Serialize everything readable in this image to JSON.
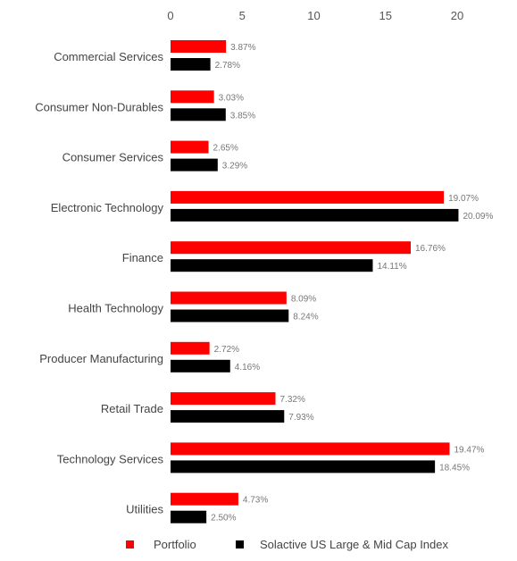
{
  "chart_data": {
    "type": "bar",
    "orientation": "horizontal",
    "x_axis_position": "top",
    "grid": false,
    "legend_placement": "bottom",
    "categories": [
      "Commercial Services",
      "Consumer Non-Durables",
      "Consumer Services",
      "Electronic Technology",
      "Finance",
      "Health Technology",
      "Producer Manufacturing",
      "Retail Trade",
      "Technology Services",
      "Utilities"
    ],
    "series": [
      {
        "name": "Portfolio",
        "color": "#ff0000",
        "values": [
          3.87,
          3.03,
          2.65,
          19.07,
          16.76,
          8.09,
          2.72,
          7.32,
          19.47,
          4.73
        ],
        "labels": [
          "3.87%",
          "3.03%",
          "2.65%",
          "19.07%",
          "16.76%",
          "8.09%",
          "2.72%",
          "7.32%",
          "19.47%",
          "4.73%"
        ]
      },
      {
        "name": "Solactive US Large & Mid Cap Index",
        "color": "#000000",
        "values": [
          2.78,
          3.85,
          3.29,
          20.09,
          14.11,
          8.24,
          4.16,
          7.93,
          18.45,
          2.5
        ],
        "labels": [
          "2.78%",
          "3.85%",
          "3.29%",
          "20.09%",
          "14.11%",
          "8.24%",
          "4.16%",
          "7.93%",
          "18.45%",
          "2.50%"
        ]
      }
    ],
    "xlim": [
      0,
      20
    ],
    "xticks": [
      "0",
      "5",
      "10",
      "15",
      "20"
    ]
  }
}
